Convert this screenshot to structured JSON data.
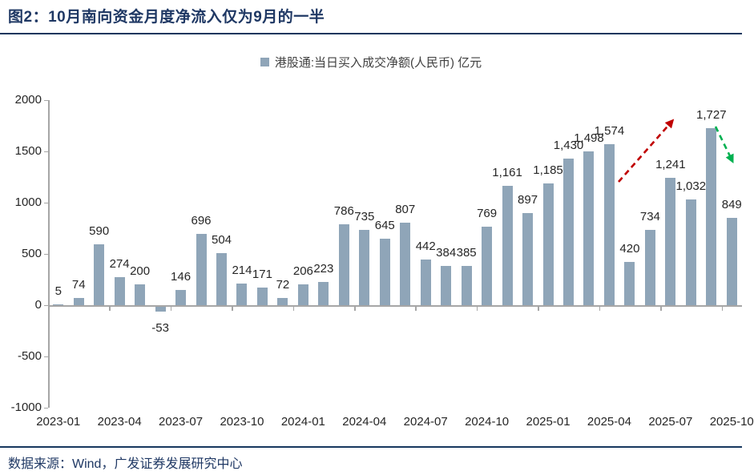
{
  "header": {
    "title": "图2：10月南向资金月度净流入仅为9月的一半"
  },
  "footer": {
    "source": "数据来源：Wind，广发证券发展研究中心"
  },
  "chart_data": {
    "type": "bar",
    "legend": "港股通:当日买入成交净额(人民币) 亿元",
    "categories": [
      "2023-01",
      "2023-02",
      "2023-03",
      "2023-04",
      "2023-05",
      "2023-06",
      "2023-07",
      "2023-08",
      "2023-09",
      "2023-10",
      "2023-11",
      "2023-12",
      "2024-01",
      "2024-02",
      "2024-03",
      "2024-04",
      "2024-05",
      "2024-06",
      "2024-07",
      "2024-08",
      "2024-09",
      "2024-10",
      "2024-11",
      "2024-12",
      "2025-01",
      "2025-02",
      "2025-03",
      "2025-04",
      "2025-05",
      "2025-06",
      "2025-07",
      "2025-08",
      "2025-09",
      "2025-10"
    ],
    "values": [
      5,
      74,
      590,
      274,
      200,
      -53,
      146,
      696,
      504,
      214,
      171,
      72,
      206,
      223,
      786,
      735,
      645,
      807,
      442,
      384,
      385,
      769,
      1161,
      897,
      1185,
      1430,
      1498,
      1574,
      420,
      734,
      1241,
      1032,
      1727,
      849
    ],
    "labels": [
      "5",
      "74",
      "590",
      "274",
      "200",
      "-53",
      "146",
      "696",
      "504",
      "214",
      "171",
      "72",
      "206",
      "223",
      "786",
      "735",
      "645",
      "807",
      "442",
      "384",
      "385",
      "769",
      "1,161",
      "897",
      "1,185",
      "1,430",
      "1,498",
      "1,574",
      "420",
      "734",
      "1,241",
      "1,032",
      "1,727",
      "849"
    ],
    "x_tick_labels": [
      "2023-01",
      "2023-04",
      "2023-07",
      "2023-10",
      "2024-01",
      "2024-04",
      "2024-07",
      "2024-10",
      "2025-01",
      "2025-04",
      "2025-07",
      "2025-10"
    ],
    "y_ticks": [
      2000,
      1500,
      1000,
      500,
      0,
      -500,
      -1000
    ],
    "ylim": [
      -1000,
      2000
    ],
    "grid": false,
    "legend_position": "top-center",
    "bar_color": "#8FA5B8",
    "axis_color": "#A6A6A6",
    "annotations": [
      {
        "type": "trend-arrow",
        "direction": "up",
        "color": "#C00000"
      },
      {
        "type": "trend-arrow",
        "direction": "down",
        "color": "#00B050"
      }
    ]
  }
}
